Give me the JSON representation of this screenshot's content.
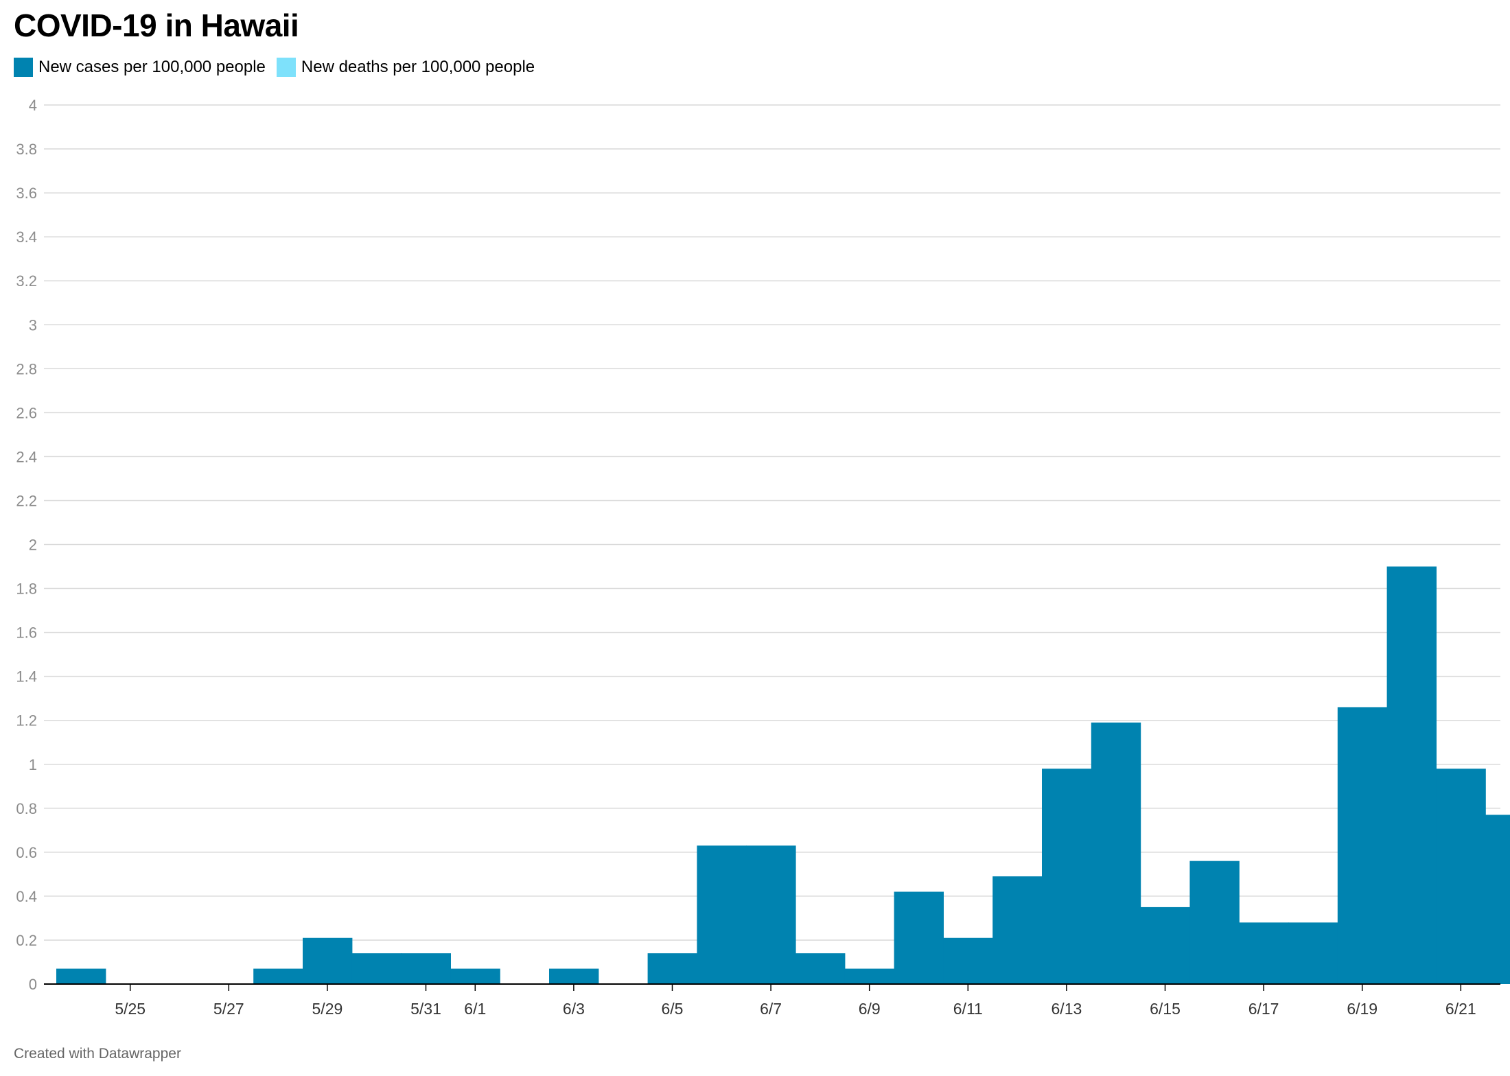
{
  "title": "COVID-19 in Hawaii",
  "footer": "Created with Datawrapper",
  "colors": {
    "cases": "#0083b0",
    "deaths": "#7ee1fb",
    "grid": "#d9d9d9",
    "tick_text": "#8c8c8c",
    "axis": "#000000"
  },
  "chart_data": {
    "type": "bar",
    "title": "COVID-19 in Hawaii",
    "xlabel": "",
    "ylabel": "",
    "ylim": [
      0,
      4
    ],
    "yticks": [
      "0",
      "0.2",
      "0.4",
      "0.6",
      "0.8",
      "1",
      "1.2",
      "1.4",
      "1.6",
      "1.8",
      "2",
      "2.2",
      "2.4",
      "2.6",
      "2.8",
      "3",
      "3.2",
      "3.4",
      "3.6",
      "3.8",
      "4"
    ],
    "grid": true,
    "legend_position": "top-left",
    "x_tick_labels": [
      "5/25",
      "5/27",
      "5/29",
      "5/31",
      "6/1",
      "6/3",
      "6/5",
      "6/7",
      "6/9",
      "6/11",
      "6/13",
      "6/15",
      "6/17",
      "6/19",
      "6/21"
    ],
    "categories": [
      "5/24",
      "5/25",
      "5/26",
      "5/27",
      "5/28",
      "5/29",
      "5/30",
      "5/31",
      "6/1",
      "6/2",
      "6/3",
      "6/4",
      "6/5",
      "6/6",
      "6/7",
      "6/8",
      "6/9",
      "6/10",
      "6/11",
      "6/12",
      "6/13",
      "6/14",
      "6/15",
      "6/16",
      "6/17",
      "6/18",
      "6/19",
      "6/20",
      "6/21",
      "6/22"
    ],
    "series": [
      {
        "name": "New cases per 100,000 people",
        "values": [
          0.07,
          0,
          0,
          0,
          0.07,
          0.21,
          0.14,
          0.14,
          0.07,
          0,
          0.07,
          0,
          0.14,
          0.63,
          0.63,
          0.14,
          0.07,
          0.42,
          0.21,
          0.49,
          0.98,
          1.19,
          0.35,
          0.56,
          0.28,
          0.28,
          1.26,
          1.9,
          0.98,
          0.77
        ]
      },
      {
        "name": "New deaths per 100,000 people",
        "values": [
          0,
          0,
          0,
          0,
          0,
          0,
          0,
          0,
          0,
          0,
          0,
          0,
          0,
          0,
          0,
          0,
          0,
          0,
          0,
          0,
          0,
          0,
          0,
          0,
          0,
          0,
          0,
          0,
          0,
          0
        ]
      }
    ]
  }
}
